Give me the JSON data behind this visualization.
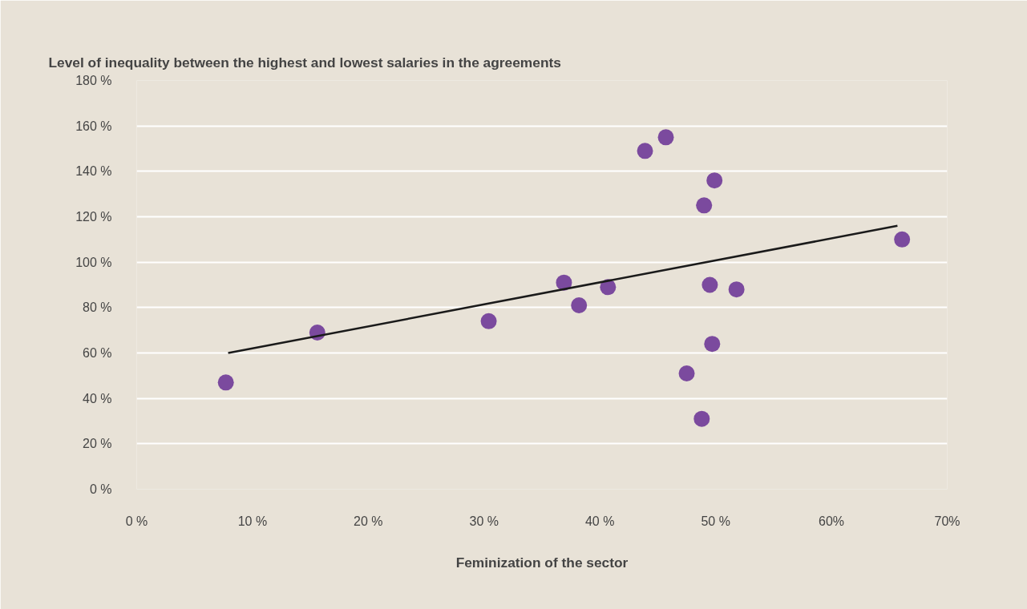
{
  "chart_data": {
    "type": "scatter",
    "title": "Level of inequality between the highest and lowest salaries in the agreements",
    "xlabel": "Feminization of the sector",
    "xlim": [
      0,
      70
    ],
    "ylim": [
      0,
      180
    ],
    "xticks": [
      {
        "value": 0,
        "label": "0 %"
      },
      {
        "value": 10,
        "label": "10 %"
      },
      {
        "value": 20,
        "label": "20 %"
      },
      {
        "value": 30,
        "label": "30 %"
      },
      {
        "value": 40,
        "label": "40 %"
      },
      {
        "value": 50,
        "label": "50 %"
      },
      {
        "value": 60,
        "label": "60%"
      },
      {
        "value": 70,
        "label": "70%"
      }
    ],
    "yticks": [
      {
        "value": 0,
        "label": "0 %"
      },
      {
        "value": 20,
        "label": "20 %"
      },
      {
        "value": 40,
        "label": "40 %"
      },
      {
        "value": 60,
        "label": "60 %"
      },
      {
        "value": 80,
        "label": "80 %"
      },
      {
        "value": 100,
        "label": "100 %"
      },
      {
        "value": 120,
        "label": "120 %"
      },
      {
        "value": 140,
        "label": "140 %"
      },
      {
        "value": 160,
        "label": "160 %"
      },
      {
        "value": 180,
        "label": "180 %"
      }
    ],
    "grid": "y",
    "series": [
      {
        "marker": "circle",
        "color": "#7b4a9e",
        "x": [
          7.7,
          15.6,
          30.4,
          36.9,
          38.2,
          40.7,
          43.9,
          45.7,
          47.5,
          48.8,
          49.0,
          49.5,
          49.7,
          49.9,
          51.8,
          66.1
        ],
        "values": [
          47,
          69,
          74,
          91,
          81,
          89,
          149,
          155,
          51,
          31,
          125,
          90,
          64,
          136,
          88,
          110
        ]
      },
      {
        "type": "line",
        "color": "#1a1a1a",
        "x": [
          7.9,
          65.7
        ],
        "values": [
          60,
          116
        ]
      }
    ]
  }
}
